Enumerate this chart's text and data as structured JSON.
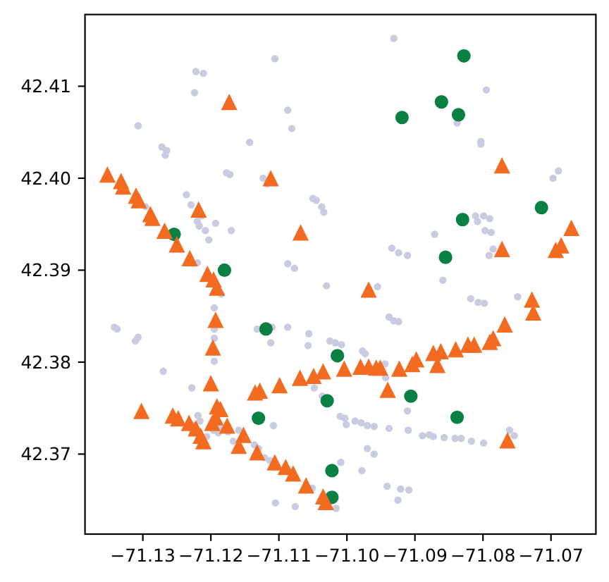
{
  "chart_data": {
    "type": "scatter",
    "xlim": [
      -71.1385,
      -71.0634
    ],
    "ylim": [
      42.3613,
      42.4178
    ],
    "xticks": [
      {
        "value": -71.13,
        "label": "−71.13"
      },
      {
        "value": -71.12,
        "label": "−71.12"
      },
      {
        "value": -71.11,
        "label": "−71.11"
      },
      {
        "value": -71.1,
        "label": "−71.10"
      },
      {
        "value": -71.09,
        "label": "−71.09"
      },
      {
        "value": -71.08,
        "label": "−71.08"
      },
      {
        "value": -71.07,
        "label": "−71.07"
      }
    ],
    "yticks": [
      42.37,
      42.38,
      42.39,
      {
        "value": 42.4,
        "label": "42.40"
      },
      42.41
    ],
    "series": [
      {
        "color": "#c9cce0",
        "marker": "circle",
        "x": [
          -71.1106,
          -71.1222,
          -71.1211,
          -71.1224,
          -71.1087,
          -71.1081,
          -71.1307,
          -71.1143,
          -71.1272,
          -71.1265,
          -71.1267,
          -71.1177,
          -71.1172,
          -71.1123,
          -71.1117,
          -71.1236,
          -71.1229,
          -71.1213,
          -71.122,
          -71.1217,
          -71.1208,
          -71.1203,
          -71.1193,
          -71.117,
          -71.1296,
          -71.1087,
          -71.1077,
          -71.122,
          -71.0931,
          -71.0795,
          -71.0838,
          -71.0803,
          -71.0803,
          -71.0689,
          -71.0697,
          -71.105,
          -71.1045,
          -71.1037,
          -71.1034,
          -71.0811,
          -71.0808,
          -71.0799,
          -71.079,
          -71.0797,
          -71.0788,
          -71.0871,
          -71.0934,
          -71.0924,
          -71.0911,
          -71.0785,
          -71.0791,
          -71.0859,
          -71.1185,
          -71.1195,
          -71.1195,
          -71.1195,
          -71.1195,
          -71.1311,
          -71.1307,
          -71.1342,
          -71.1338,
          -71.127,
          -71.1228,
          -71.1132,
          -71.111,
          -71.1087,
          -71.1112,
          -71.103,
          -71.0955,
          -71.1056,
          -71.1057,
          -71.1025,
          -71.1017,
          -71.1008,
          -71.0977,
          -71.0973,
          -71.0938,
          -71.0931,
          -71.0924,
          -71.0944,
          -71.0943,
          -71.0749,
          -71.0818,
          -71.0807,
          -71.0798,
          -71.1048,
          -71.1036,
          -71.0911,
          -71.101,
          -71.1003,
          -71.1001,
          -71.0988,
          -71.0979,
          -71.097,
          -71.096,
          -71.0938,
          -71.091,
          -71.0889,
          -71.0879,
          -71.0873,
          -71.0857,
          -71.0841,
          -71.0832,
          -71.0817,
          -71.0799,
          -71.0761,
          -71.0754,
          -71.097,
          -71.096,
          -71.1009,
          -71.0978,
          -71.0941,
          -71.0921,
          -71.0909,
          -71.0925,
          -71.1016,
          -71.1051,
          -71.1105,
          -71.1076,
          -71.1219,
          -71.1216,
          -71.1224,
          -71.1227,
          -71.1206,
          -71.1196,
          -71.1189,
          -71.1186,
          -71.1175,
          -71.1159,
          -71.1167,
          -71.1108,
          -71.1136,
          -71.113,
          -71.1121,
          -71.1113
        ],
        "values": [
          42.413,
          42.4116,
          42.4114,
          42.4093,
          42.4074,
          42.4054,
          42.4057,
          42.4039,
          42.4034,
          42.403,
          42.4025,
          42.4006,
          42.4004,
          42.4,
          42.3994,
          42.3982,
          42.3971,
          42.3959,
          42.3953,
          42.3948,
          42.3943,
          42.3933,
          42.3951,
          42.3943,
          42.3969,
          42.3907,
          42.3902,
          42.3908,
          42.4152,
          42.4096,
          42.406,
          42.404,
          42.4037,
          42.4008,
          42.4,
          42.3978,
          42.3976,
          42.3969,
          42.3963,
          42.3959,
          42.3953,
          42.3959,
          42.3956,
          42.3943,
          42.3941,
          42.3939,
          42.3924,
          42.3919,
          42.3916,
          42.3923,
          42.3916,
          42.3889,
          42.3874,
          42.3859,
          42.3836,
          42.3826,
          42.3801,
          42.3823,
          42.3827,
          42.3838,
          42.3836,
          42.379,
          42.3772,
          42.3836,
          42.3838,
          42.3838,
          42.3821,
          42.3883,
          42.3882,
          42.3831,
          42.3818,
          42.3823,
          42.3821,
          42.3819,
          42.3812,
          42.3809,
          42.3849,
          42.3845,
          42.3844,
          42.3798,
          42.3783,
          42.3871,
          42.3869,
          42.3865,
          42.3864,
          42.3772,
          42.3763,
          42.3747,
          42.3741,
          42.3739,
          42.3732,
          42.3736,
          42.3734,
          42.3731,
          42.373,
          42.3728,
          42.3726,
          42.372,
          42.3721,
          42.3719,
          42.3718,
          42.3717,
          42.3717,
          42.3714,
          42.3712,
          42.3726,
          42.372,
          42.3706,
          42.37,
          42.3691,
          42.3682,
          42.3665,
          42.3662,
          42.3661,
          42.365,
          42.3641,
          42.3663,
          42.3647,
          42.3643,
          42.3742,
          42.3736,
          42.3731,
          42.3724,
          42.3719,
          42.3726,
          42.3723,
          42.3728,
          42.3724,
          42.3726,
          42.3714,
          42.3731,
          42.371,
          42.3706,
          42.3696,
          42.3693
        ]
      },
      {
        "color": "#0b8043",
        "marker": "circle",
        "x": [
          -71.1254,
          -71.118,
          -71.1119,
          -71.113,
          -71.1014,
          -71.1029,
          -71.1022,
          -71.1022,
          -71.0906,
          -71.0838,
          -71.0919,
          -71.0861,
          -71.0836,
          -71.0828,
          -71.0855,
          -71.083,
          -71.0714
        ],
        "values": [
          42.3939,
          42.39,
          42.3836,
          42.3739,
          42.3807,
          42.3758,
          42.3682,
          42.3653,
          42.3763,
          42.374,
          42.4066,
          42.4083,
          42.4069,
          42.4133,
          42.3914,
          42.3955,
          42.3968
        ]
      },
      {
        "color": "#f26b21",
        "marker": "triangle",
        "x": [
          -71.1352,
          -71.1332,
          -71.1329,
          -71.131,
          -71.1306,
          -71.1289,
          -71.1286,
          -71.1268,
          -71.125,
          -71.1231,
          -71.1205,
          -71.1196,
          -71.1191,
          -71.1193,
          -71.1197,
          -71.12,
          -71.1302,
          -71.1256,
          -71.1248,
          -71.1232,
          -71.1222,
          -71.1215,
          -71.1211,
          -71.1191,
          -71.1186,
          -71.1193,
          -71.1198,
          -71.1176,
          -71.1152,
          -71.1159,
          -71.1132,
          -71.1106,
          -71.109,
          -71.1079,
          -71.106,
          -71.1035,
          -71.1031,
          -71.1128,
          -71.1135,
          -71.1099,
          -71.1069,
          -71.1049,
          -71.1035,
          -71.1004,
          -71.098,
          -71.0968,
          -71.0957,
          -71.0951,
          -71.0923,
          -71.0904,
          -71.0898,
          -71.0873,
          -71.0862,
          -71.084,
          -71.0822,
          -71.0813,
          -71.079,
          -71.0785,
          -71.0768,
          -71.0728,
          -71.0726,
          -71.0867,
          -71.094,
          -71.0764,
          -71.1173,
          -71.1112,
          -71.1218,
          -71.1068,
          -71.0968,
          -71.0772,
          -71.0772,
          -71.067,
          -71.0685,
          -71.0693
        ],
        "values": [
          42.4004,
          42.3997,
          42.3991,
          42.3981,
          42.3976,
          42.3961,
          42.3957,
          42.3943,
          42.3928,
          42.3913,
          42.3896,
          42.389,
          42.3881,
          42.3846,
          42.3816,
          42.3777,
          42.3747,
          42.3742,
          42.3739,
          42.3734,
          42.3728,
          42.372,
          42.3714,
          42.3752,
          42.3749,
          42.374,
          42.3734,
          42.3731,
          42.3721,
          42.3709,
          42.3702,
          42.3691,
          42.3686,
          42.3679,
          42.3666,
          42.3654,
          42.3648,
          42.3769,
          42.3767,
          42.3775,
          42.3783,
          42.3785,
          42.379,
          42.3793,
          42.3795,
          42.3795,
          42.3794,
          42.3794,
          42.3793,
          42.3798,
          42.3803,
          42.381,
          42.3812,
          42.3814,
          42.3819,
          42.3819,
          42.3822,
          42.3826,
          42.3841,
          42.3868,
          42.3854,
          42.3797,
          42.377,
          42.3715,
          42.4083,
          42.4,
          42.3966,
          42.3941,
          42.3879,
          42.4014,
          42.3923,
          42.3946,
          42.3927,
          42.3922
        ]
      }
    ]
  }
}
